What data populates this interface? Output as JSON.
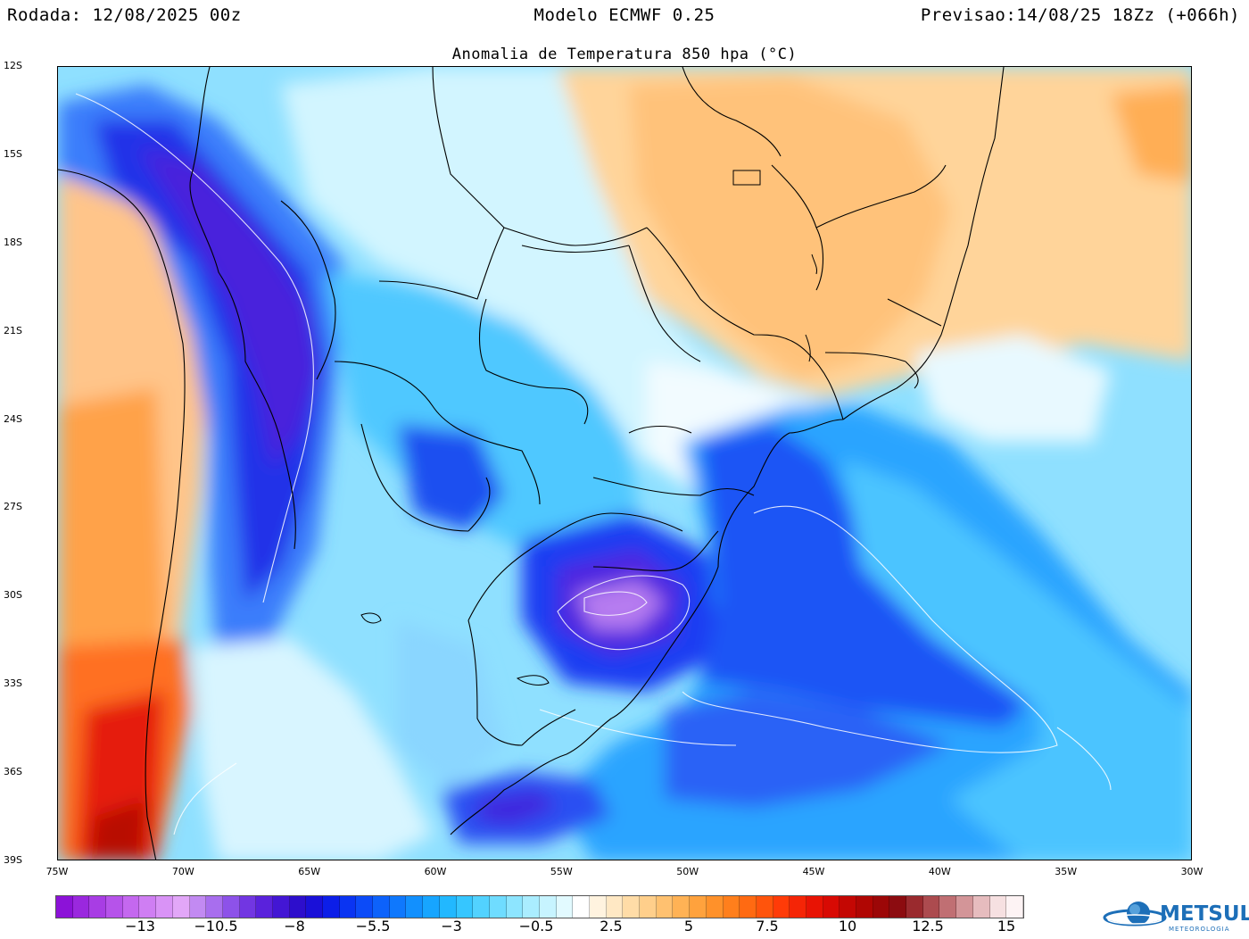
{
  "header": {
    "left": "Rodada: 12/08/2025 00z",
    "center": "Modelo ECMWF 0.25",
    "right": "Previsao:14/08/25 18Zz (+066h)"
  },
  "title": "Anomalia de Temperatura 850 hpa (°C)",
  "lat_labels": [
    "12S",
    "15S",
    "18S",
    "21S",
    "24S",
    "27S",
    "30S",
    "33S",
    "36S",
    "39S"
  ],
  "lon_labels": [
    "75W",
    "70W",
    "65W",
    "60W",
    "55W",
    "50W",
    "45W",
    "40W",
    "35W",
    "30W"
  ],
  "colorbar": {
    "labels": [
      "−13",
      "−10.5",
      "−8",
      "−5.5",
      "−3",
      "−0.5",
      "2.5",
      "5",
      "7.5",
      "10",
      "12.5",
      "15"
    ],
    "colors": [
      "#8c12d8",
      "#9a28de",
      "#a83de4",
      "#b653ea",
      "#c468ef",
      "#cf7ef3",
      "#d993f6",
      "#e2a7f8",
      "#c28af2",
      "#a86eee",
      "#8d52e9",
      "#7236e2",
      "#5a22dc",
      "#4316d4",
      "#2d0ecc",
      "#1a10d8",
      "#0c1ee8",
      "#0a34f2",
      "#0c4bf8",
      "#0d62fb",
      "#0f78fd",
      "#1290fe",
      "#17a5ff",
      "#22b8ff",
      "#36c6ff",
      "#52d2ff",
      "#6fdcff",
      "#8de5ff",
      "#aaedff",
      "#c7f4ff",
      "#e2faff",
      "#ffffff",
      "#fff3df",
      "#ffe8c4",
      "#ffdca7",
      "#ffcf8b",
      "#ffc170",
      "#ffb255",
      "#ffa23d",
      "#ff912a",
      "#ff7f1c",
      "#ff6a12",
      "#ff540c",
      "#ff3b08",
      "#f52506",
      "#e81304",
      "#d80a03",
      "#c40703",
      "#b00603",
      "#9c0707",
      "#8c0c10",
      "#9a2a2e",
      "#ac4b4f",
      "#c06f73",
      "#d39598",
      "#e6bcbe",
      "#f6e0e1",
      "#fdf3f4"
    ]
  },
  "logo": {
    "text": "METSUL",
    "sub": "METEOROLOGIA"
  }
}
